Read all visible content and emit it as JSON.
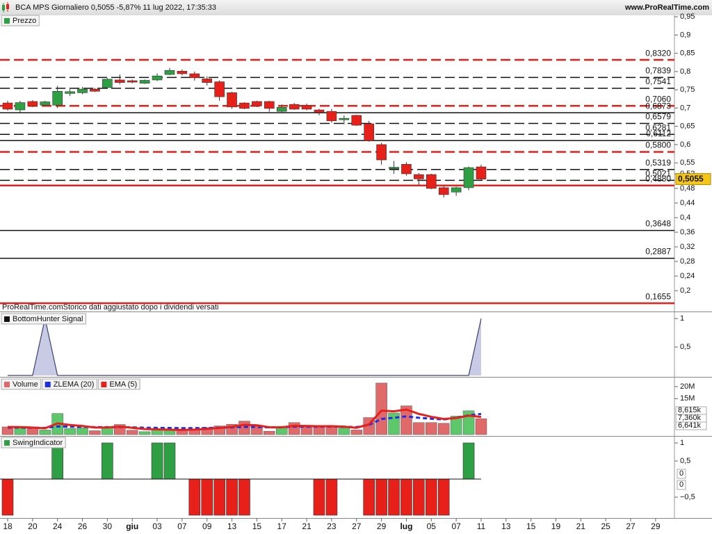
{
  "header": {
    "title": "BCA MPS Giornaliero 0,5055 -5,87% 11 lug 2022, 17:35:33",
    "site": "www.ProRealTime.com"
  },
  "chart_data": [
    {
      "type": "candlestick",
      "legend": "Prezzo",
      "note": "ProRealTime.comStorico dati aggiustato dopo i dividendi versati",
      "up_color": "#2ea043",
      "down_color": "#e8201a",
      "open": [
        0.714,
        0.695,
        0.718,
        0.708,
        0.708,
        0.74,
        0.742,
        0.752,
        0.756,
        0.777,
        0.775,
        0.768,
        0.777,
        0.792,
        0.801,
        0.794,
        0.78,
        0.772,
        0.742,
        0.714,
        0.718,
        0.718,
        0.691,
        0.71,
        0.708,
        0.695,
        0.691,
        0.668,
        0.68,
        0.657,
        0.6,
        0.534,
        0.546,
        0.518,
        0.518,
        0.482,
        0.47,
        0.482,
        0.539,
        null,
        null,
        null,
        null,
        null,
        null,
        null,
        null,
        null,
        null,
        null,
        null,
        null,
        null
      ],
      "high": [
        0.72,
        0.72,
        0.722,
        0.72,
        0.761,
        0.752,
        0.758,
        0.755,
        0.782,
        0.792,
        0.778,
        0.778,
        0.795,
        0.81,
        0.806,
        0.8,
        0.787,
        0.776,
        0.745,
        0.716,
        0.72,
        0.72,
        0.71,
        0.714,
        0.712,
        0.698,
        0.698,
        0.68,
        0.682,
        0.665,
        0.605,
        0.555,
        0.552,
        0.522,
        0.52,
        0.487,
        0.485,
        0.54,
        0.545,
        null,
        null,
        null,
        null,
        null,
        null,
        null,
        null,
        null,
        null,
        null,
        null,
        null,
        null
      ],
      "low": [
        0.693,
        0.688,
        0.703,
        0.705,
        0.7,
        0.733,
        0.738,
        0.744,
        0.752,
        0.765,
        0.768,
        0.766,
        0.774,
        0.79,
        0.79,
        0.775,
        0.762,
        0.72,
        0.698,
        0.697,
        0.703,
        0.69,
        0.686,
        0.695,
        0.694,
        0.68,
        0.66,
        0.655,
        0.651,
        0.608,
        0.545,
        0.52,
        0.515,
        0.49,
        0.478,
        0.455,
        0.46,
        0.475,
        0.503,
        null,
        null,
        null,
        null,
        null,
        null,
        null,
        null,
        null,
        null,
        null,
        null,
        null,
        null
      ],
      "close": [
        0.697,
        0.715,
        0.706,
        0.717,
        0.746,
        0.745,
        0.752,
        0.746,
        0.779,
        0.77,
        0.771,
        0.776,
        0.788,
        0.803,
        0.794,
        0.783,
        0.77,
        0.731,
        0.703,
        0.699,
        0.706,
        0.699,
        0.702,
        0.697,
        0.697,
        0.688,
        0.665,
        0.672,
        0.653,
        0.611,
        0.558,
        0.538,
        0.52,
        0.506,
        0.48,
        0.463,
        0.482,
        0.537,
        0.5055,
        null,
        null,
        null,
        null,
        null,
        null,
        null,
        null,
        null,
        null,
        null,
        null,
        null,
        null
      ],
      "ylim": [
        0.143,
        0.954
      ],
      "yticks": [
        {
          "value": 0.95,
          "label": "0,95"
        },
        {
          "value": 0.9,
          "label": "0,9"
        },
        {
          "value": 0.85,
          "label": "0,85"
        },
        {
          "value": 0.8,
          "label": "0,8"
        },
        {
          "value": 0.75,
          "label": "0,75"
        },
        {
          "value": 0.7,
          "label": "0,7"
        },
        {
          "value": 0.65,
          "label": "0,65"
        },
        {
          "value": 0.6,
          "label": "0,6"
        },
        {
          "value": 0.55,
          "label": "0,55"
        },
        {
          "value": 0.52,
          "label": "0,52"
        },
        {
          "value": 0.48,
          "label": "0,48"
        },
        {
          "value": 0.44,
          "label": "0,44"
        },
        {
          "value": 0.4,
          "label": "0,4"
        },
        {
          "value": 0.36,
          "label": "0,36"
        },
        {
          "value": 0.32,
          "label": "0,32"
        },
        {
          "value": 0.28,
          "label": "0,28"
        },
        {
          "value": 0.24,
          "label": "0,24"
        },
        {
          "value": 0.2,
          "label": "0,2"
        }
      ],
      "levels": [
        {
          "value": 0.832,
          "label": "0,8320",
          "color": "#e8201a",
          "dashed": true
        },
        {
          "value": 0.7839,
          "label": "0,7839",
          "color": "#111111",
          "dashed": true
        },
        {
          "value": 0.7541,
          "label": "0,7541",
          "color": "#111111",
          "dashed": true
        },
        {
          "value": 0.706,
          "label": "0,7060",
          "color": "#e8201a",
          "dashed": true
        },
        {
          "value": 0.6873,
          "label": "0,6873",
          "color": "#111111",
          "dashed": false
        },
        {
          "value": 0.6579,
          "label": "0,6579",
          "color": "#111111",
          "dashed": true
        },
        {
          "value": 0.6281,
          "label": "0,6281",
          "color": "#111111",
          "dashed": true
        },
        {
          "value": 0.6112,
          "label": "0,6112",
          "color": "#111111",
          "dashed": false
        },
        {
          "value": 0.58,
          "label": "0,5800",
          "color": "#e8201a",
          "dashed": true
        },
        {
          "value": 0.5319,
          "label": "0,5319",
          "color": "#111111",
          "dashed": true
        },
        {
          "value": 0.5021,
          "label": "0,5021",
          "color": "#111111",
          "dashed": true
        },
        {
          "value": 0.488,
          "label": "0,4880",
          "color": "#e8201a",
          "dashed": false
        },
        {
          "value": 0.3648,
          "label": "0,3648",
          "color": "#111111",
          "dashed": false
        },
        {
          "value": 0.2887,
          "label": "0,2887",
          "color": "#111111",
          "dashed": false
        },
        {
          "value": 0.1655,
          "label": "0,1655",
          "color": "#e8201a",
          "dashed": false
        }
      ],
      "last_label": {
        "value": 0.5055,
        "label": "0,5055"
      }
    },
    {
      "type": "area",
      "legend": "BottomHunter Signal",
      "color": "#3a3f7a",
      "fill": "#c9cbe4",
      "values": [
        0,
        0,
        0,
        1,
        0,
        0,
        0,
        0,
        0,
        0,
        0,
        0,
        0,
        0,
        0,
        0,
        0,
        0,
        0,
        0,
        0,
        0,
        0,
        0,
        0,
        0,
        0,
        0,
        0,
        0,
        0,
        0,
        0,
        0,
        0,
        0,
        0,
        0,
        1,
        null,
        null,
        null,
        null,
        null,
        null,
        null,
        null,
        null,
        null,
        null,
        null,
        null,
        null
      ],
      "ylim": [
        0,
        1.1
      ],
      "yticks": [
        1,
        {
          "value": 0.5,
          "label": "0,5"
        }
      ]
    },
    {
      "type": "volume",
      "ylim": [
        0,
        23500000
      ],
      "yticks": [
        {
          "value": 20000000,
          "label": "20M"
        },
        {
          "value": 15000000,
          "label": "15M"
        }
      ],
      "series": [
        {
          "name": "Volume",
          "kind": "bar",
          "color": "#e06a6a",
          "up_color": "#5cc86a",
          "last_label": "6,641k",
          "values": [
            3200000,
            3000000,
            2600000,
            1900000,
            8800000,
            2600000,
            2800000,
            1600000,
            2900000,
            4200000,
            1800000,
            1200000,
            1900000,
            1800000,
            1700000,
            2400000,
            2900000,
            3600000,
            4300000,
            5600000,
            3500000,
            1400000,
            2900000,
            5000000,
            3400000,
            3300000,
            3600000,
            2800000,
            1900000,
            7100000,
            21500000,
            9000000,
            12000000,
            5000000,
            5000000,
            4700000,
            7700000,
            9900000,
            6641000,
            null,
            null,
            null,
            null,
            null,
            null,
            null,
            null,
            null,
            null,
            null,
            null,
            null,
            null
          ]
        },
        {
          "name": "ZLEMA (20)",
          "kind": "line",
          "color": "#1a2ee8",
          "dashed": true,
          "last_label": "8,615k",
          "values": [
            2900000,
            2900000,
            2850000,
            2800000,
            3400000,
            3300000,
            3250000,
            3100000,
            3100000,
            3150000,
            3000000,
            2850000,
            2800000,
            2750000,
            2700000,
            2700000,
            2750000,
            2850000,
            3000000,
            3200000,
            3200000,
            3000000,
            3050000,
            3300000,
            3300000,
            3300000,
            3350000,
            3250000,
            3100000,
            4000000,
            6500000,
            7000000,
            7600000,
            7000000,
            6600000,
            6300000,
            7000000,
            8000000,
            8615000,
            null,
            null,
            null,
            null,
            null,
            null,
            null,
            null,
            null,
            null,
            null,
            null,
            null,
            null
          ]
        },
        {
          "name": "EMA (5)",
          "kind": "line",
          "color": "#e8201a",
          "dashed": false,
          "last_label": "7,360k",
          "values": [
            3200000,
            3130000,
            2950000,
            2600000,
            4670000,
            3980000,
            3590000,
            2930000,
            2920000,
            3350000,
            2830000,
            2290000,
            2160000,
            2040000,
            1930000,
            2080000,
            2350000,
            2770000,
            3280000,
            4050000,
            3870000,
            3050000,
            3000000,
            3670000,
            3580000,
            3490000,
            3530000,
            3290000,
            2830000,
            4250000,
            10000000,
            9670000,
            10450000,
            8630000,
            7420000,
            6510000,
            6910000,
            7900000,
            7360000,
            null,
            null,
            null,
            null,
            null,
            null,
            null,
            null,
            null,
            null,
            null,
            null,
            null,
            null
          ]
        }
      ]
    },
    {
      "type": "bar",
      "legend": "SwingIndicator",
      "up_color": "#2ea043",
      "down_color": "#e8201a",
      "categories": [
        "18",
        null,
        "20",
        null,
        "24",
        null,
        "26",
        null,
        "30",
        null,
        "giu",
        null,
        "03",
        null,
        "07",
        null,
        "09",
        null,
        "13",
        null,
        "15",
        null,
        "17",
        null,
        "21",
        null,
        "23",
        null,
        "27",
        null,
        "29",
        null,
        "lug",
        null,
        "05",
        null,
        "07",
        null,
        "11",
        null,
        "13",
        null,
        "15",
        null,
        "19",
        null,
        "21",
        null,
        "25",
        null,
        "27",
        null,
        "29"
      ],
      "values": [
        -1,
        0,
        0,
        0,
        1,
        0,
        0,
        0,
        1,
        0,
        0,
        0,
        1,
        1,
        0,
        -1,
        -1,
        -1,
        -1,
        -1,
        0,
        0,
        0,
        0,
        0,
        -1,
        -1,
        0,
        0,
        -1,
        -1,
        -1,
        -1,
        -1,
        -1,
        -1,
        0,
        1,
        0,
        null,
        null,
        null,
        null,
        null,
        null,
        null,
        null,
        null,
        null,
        null,
        null,
        null,
        null
      ],
      "ylim": [
        -1.077,
        1.173
      ],
      "yticks": [
        1,
        {
          "value": 0.5,
          "label": "0,5"
        },
        {
          "value": -0.5,
          "label": "−0,5"
        }
      ],
      "last_values": [
        0,
        0
      ]
    }
  ]
}
